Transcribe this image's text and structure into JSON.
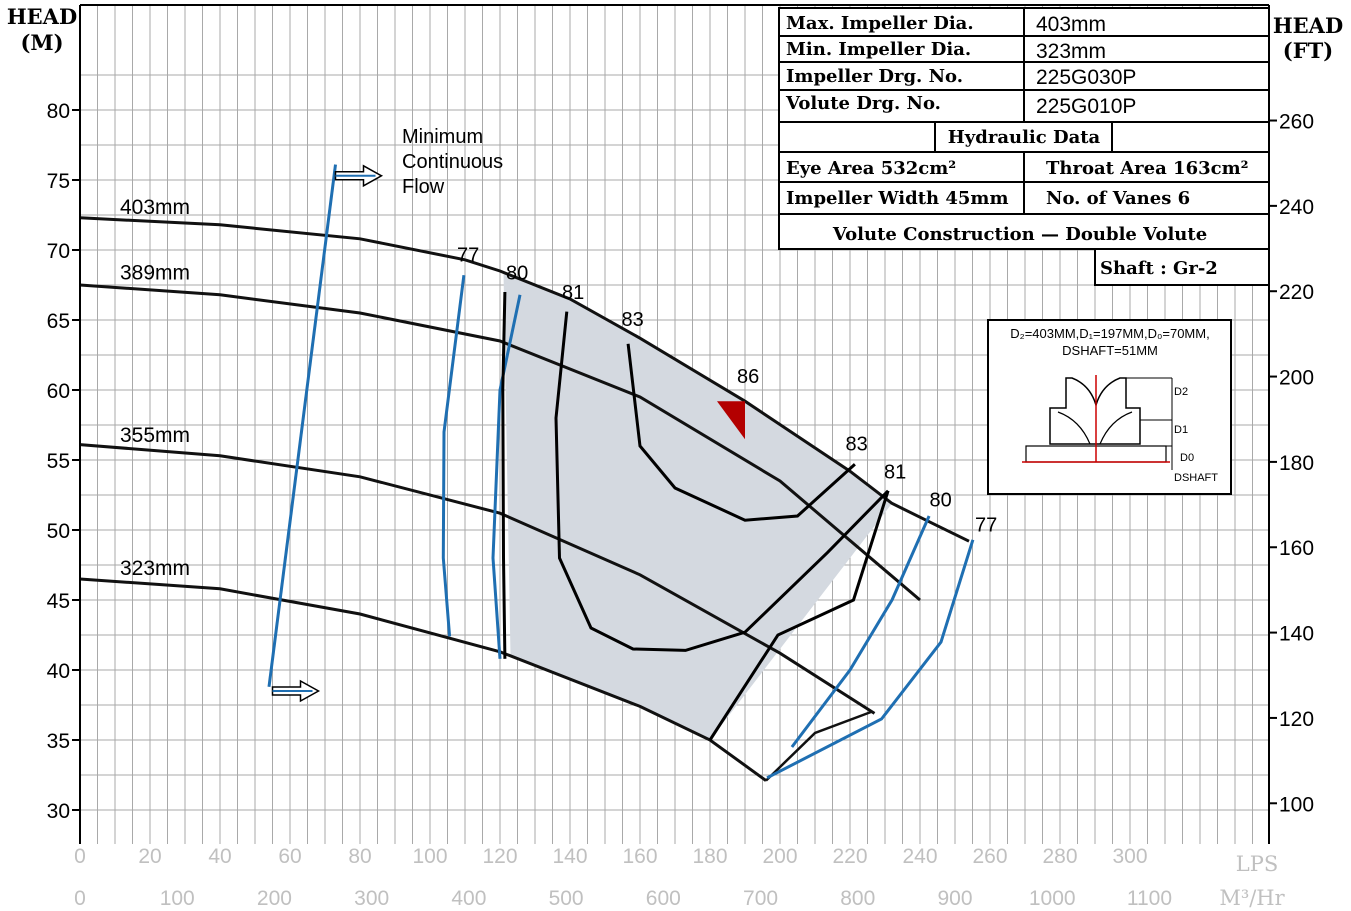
{
  "chart_data": {
    "type": "line",
    "y_left": {
      "label": [
        "HEAD",
        "(M)"
      ],
      "range": [
        30,
        83
      ],
      "ticks": [
        30,
        35,
        40,
        45,
        50,
        55,
        60,
        65,
        70,
        75,
        80
      ]
    },
    "y_right": {
      "label": [
        "HEAD",
        "(FT)"
      ],
      "ticks": [
        100,
        120,
        140,
        160,
        180,
        200,
        220,
        240,
        260
      ]
    },
    "x_lps": {
      "unit": "LPS",
      "range": [
        0,
        340
      ],
      "ticks": [
        0,
        20,
        40,
        60,
        80,
        100,
        120,
        140,
        160,
        180,
        200,
        220,
        240,
        260,
        280,
        300
      ]
    },
    "x_m3hr": {
      "unit": "M³/Hr",
      "ticks": [
        0,
        100,
        200,
        300,
        400,
        500,
        600,
        700,
        800,
        900,
        1000,
        1100
      ]
    },
    "grid": true,
    "series": [
      {
        "name": "403mm",
        "points": [
          [
            0,
            72.3
          ],
          [
            40,
            71.8
          ],
          [
            80,
            70.8
          ],
          [
            110,
            69.3
          ],
          [
            120,
            68.5
          ],
          [
            140,
            66.5
          ],
          [
            160,
            63.7
          ],
          [
            190,
            59.2
          ],
          [
            220,
            54.2
          ],
          [
            232,
            51.9
          ],
          [
            245,
            50.3
          ],
          [
            254,
            49.2
          ]
        ]
      },
      {
        "name": "389mm",
        "points": [
          [
            0,
            67.5
          ],
          [
            40,
            66.8
          ],
          [
            80,
            65.5
          ],
          [
            120,
            63.5
          ],
          [
            160,
            59.5
          ],
          [
            200,
            53.5
          ],
          [
            240,
            45.0
          ]
        ]
      },
      {
        "name": "355mm",
        "points": [
          [
            0,
            56.1
          ],
          [
            40,
            55.3
          ],
          [
            80,
            53.8
          ],
          [
            120,
            51.2
          ],
          [
            160,
            46.8
          ],
          [
            200,
            41.2
          ],
          [
            227,
            36.9
          ]
        ]
      },
      {
        "name": "323mm",
        "points": [
          [
            0,
            46.5
          ],
          [
            40,
            45.8
          ],
          [
            80,
            44.0
          ],
          [
            120,
            41.3
          ],
          [
            160,
            37.4
          ],
          [
            180,
            35.0
          ],
          [
            196,
            32.1
          ]
        ]
      }
    ],
    "efficiency_labels": [
      "77",
      "80",
      "81",
      "83",
      "86",
      "83",
      "81",
      "80",
      "77"
    ],
    "best_efficiency_point": {
      "flow_lps": 190,
      "head_m": 59.2,
      "efficiency": "86"
    },
    "annotation": [
      "Minimum",
      "Continuous",
      "Flow"
    ]
  },
  "table": {
    "rows": [
      {
        "label": "Max. Impeller Dia.",
        "value": "403mm"
      },
      {
        "label": "Min. Impeller Dia.",
        "value": "323mm"
      },
      {
        "label": "Impeller Drg. No.",
        "value": "225G030P"
      },
      {
        "label": "Volute Drg. No.",
        "value": "225G010P"
      }
    ],
    "hydraulic_header": "Hydraulic Data",
    "eye_area": "Eye Area 532cm²",
    "throat_area": "Throat Area 163cm²",
    "impeller_width": "Impeller Width 45mm",
    "vanes": "No. of Vanes 6",
    "volute": "Volute Construction — Double Volute",
    "shaft": "Shaft : Gr-2"
  },
  "impeller_sketch": {
    "line1": "D₂=403MM,D₁=197MM,D₀=70MM,",
    "line2": "DSHAFT=51MM",
    "labels": [
      "D2",
      "D1",
      "D0",
      "DSHAFT"
    ]
  },
  "colors": {
    "head_curve": "#111111",
    "efficiency_outer": "#1f6fb2",
    "fill": "#d4d9e0",
    "bep_marker": "#b30000"
  }
}
